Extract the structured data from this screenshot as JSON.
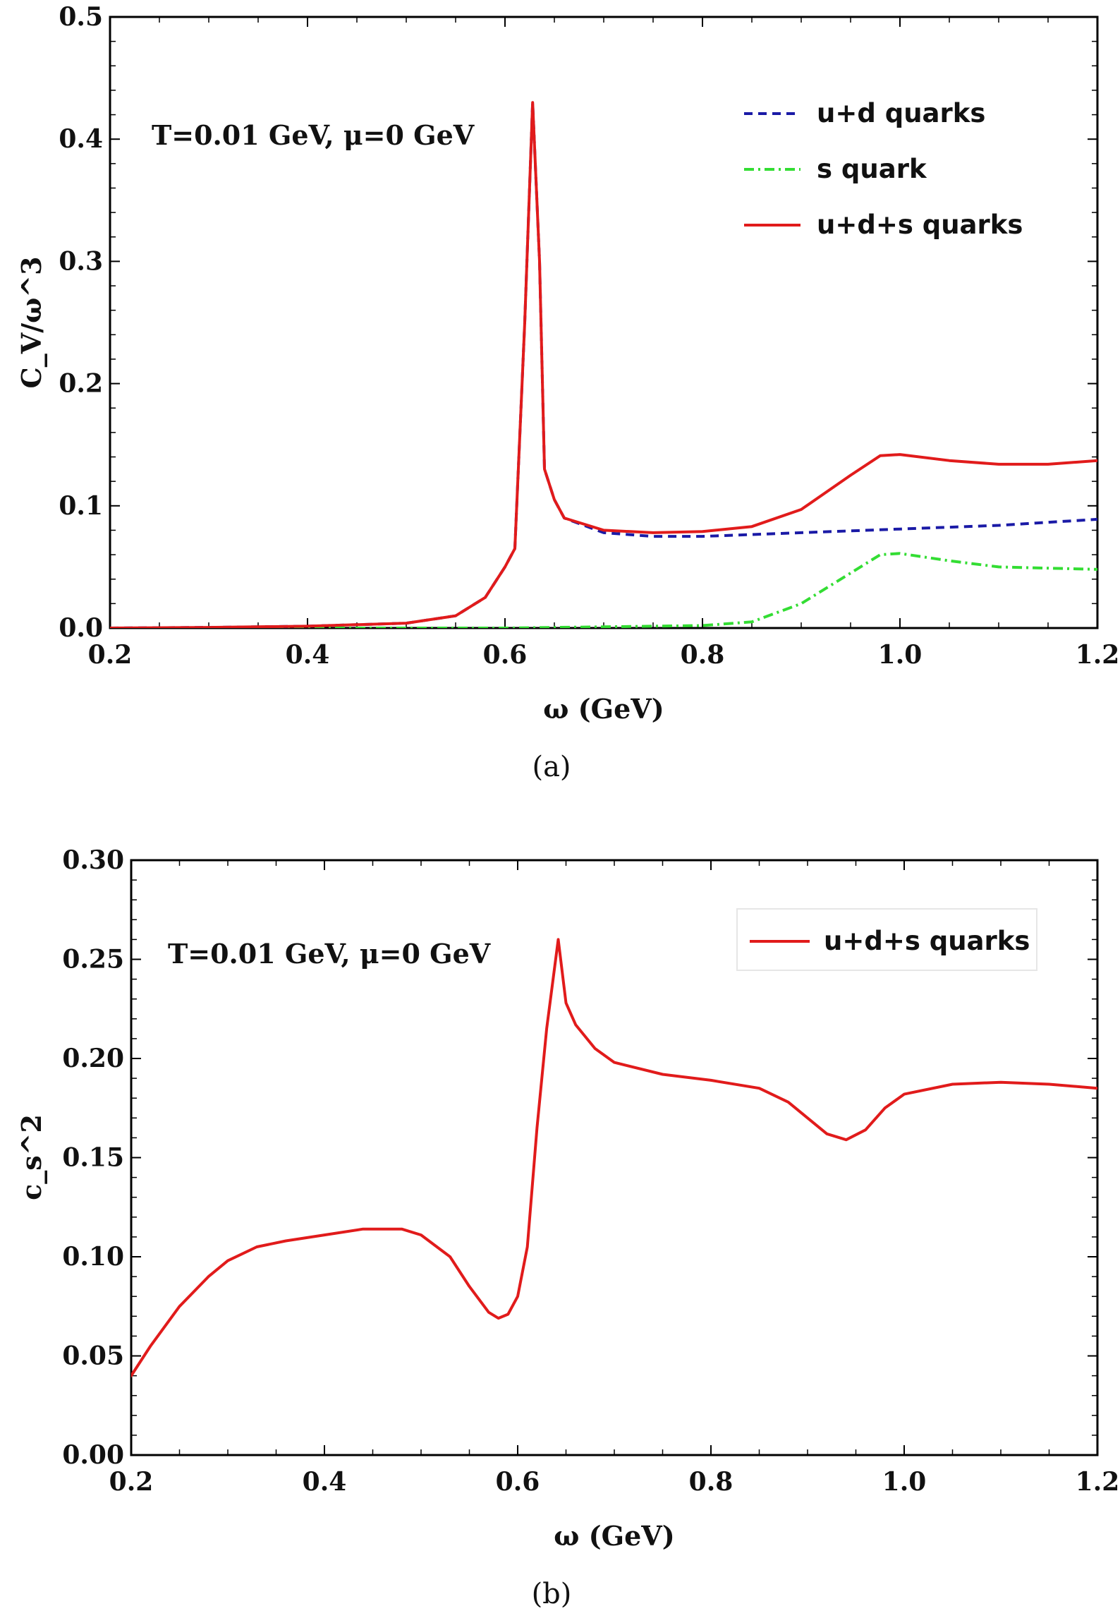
{
  "chart_data": [
    {
      "type": "line",
      "panel_label": "(a)",
      "annotation": "T=0.01 GeV, μ=0 GeV",
      "xlabel": "ω (GeV)",
      "ylabel": "C_V/ω^3",
      "xlim": [
        0.2,
        1.2
      ],
      "ylim": [
        0.0,
        0.5
      ],
      "x_ticks": [
        "0.2",
        "0.4",
        "0.6",
        "0.8",
        "1.0",
        "1.2"
      ],
      "y_ticks": [
        "0.0",
        "0.1",
        "0.2",
        "0.3",
        "0.4",
        "0.5"
      ],
      "legend_position": "top-right",
      "grid": false,
      "series": [
        {
          "name": "u+d quarks",
          "style": "dashed",
          "color": "#1a1aa6",
          "points": [
            [
              0.2,
              0.0
            ],
            [
              0.3,
              0.0005
            ],
            [
              0.4,
              0.0015
            ],
            [
              0.5,
              0.004
            ],
            [
              0.55,
              0.01
            ],
            [
              0.58,
              0.025
            ],
            [
              0.6,
              0.05
            ],
            [
              0.61,
              0.065
            ],
            [
              0.62,
              0.25
            ],
            [
              0.628,
              0.43
            ],
            [
              0.635,
              0.3
            ],
            [
              0.64,
              0.13
            ],
            [
              0.65,
              0.105
            ],
            [
              0.66,
              0.09
            ],
            [
              0.7,
              0.078
            ],
            [
              0.75,
              0.075
            ],
            [
              0.8,
              0.075
            ],
            [
              0.9,
              0.078
            ],
            [
              1.0,
              0.081
            ],
            [
              1.1,
              0.084
            ],
            [
              1.2,
              0.089
            ]
          ]
        },
        {
          "name": "s quark",
          "style": "dash-dot",
          "color": "#33dd33",
          "points": [
            [
              0.2,
              0.0
            ],
            [
              0.6,
              0.0
            ],
            [
              0.7,
              0.001
            ],
            [
              0.8,
              0.002
            ],
            [
              0.85,
              0.005
            ],
            [
              0.9,
              0.02
            ],
            [
              0.95,
              0.045
            ],
            [
              0.98,
              0.06
            ],
            [
              1.0,
              0.061
            ],
            [
              1.05,
              0.055
            ],
            [
              1.1,
              0.05
            ],
            [
              1.2,
              0.048
            ]
          ]
        },
        {
          "name": "u+d+s quarks",
          "style": "solid",
          "color": "#e11b1b",
          "points": [
            [
              0.2,
              0.0
            ],
            [
              0.3,
              0.0005
            ],
            [
              0.4,
              0.0015
            ],
            [
              0.5,
              0.004
            ],
            [
              0.55,
              0.01
            ],
            [
              0.58,
              0.025
            ],
            [
              0.6,
              0.05
            ],
            [
              0.61,
              0.065
            ],
            [
              0.62,
              0.25
            ],
            [
              0.628,
              0.43
            ],
            [
              0.635,
              0.3
            ],
            [
              0.64,
              0.13
            ],
            [
              0.65,
              0.105
            ],
            [
              0.66,
              0.09
            ],
            [
              0.7,
              0.08
            ],
            [
              0.75,
              0.078
            ],
            [
              0.8,
              0.079
            ],
            [
              0.85,
              0.083
            ],
            [
              0.9,
              0.097
            ],
            [
              0.95,
              0.125
            ],
            [
              0.98,
              0.141
            ],
            [
              1.0,
              0.142
            ],
            [
              1.05,
              0.137
            ],
            [
              1.1,
              0.134
            ],
            [
              1.15,
              0.134
            ],
            [
              1.2,
              0.137
            ]
          ]
        }
      ]
    },
    {
      "type": "line",
      "panel_label": "(b)",
      "annotation": "T=0.01 GeV, μ=0 GeV",
      "xlabel": "ω (GeV)",
      "ylabel": "c_s^2",
      "xlim": [
        0.2,
        1.2
      ],
      "ylim": [
        0.0,
        0.3
      ],
      "x_ticks": [
        "0.2",
        "0.4",
        "0.6",
        "0.8",
        "1.0",
        "1.2"
      ],
      "y_ticks": [
        "0.00",
        "0.05",
        "0.10",
        "0.15",
        "0.20",
        "0.25",
        "0.30"
      ],
      "legend_position": "top-right",
      "grid": false,
      "series": [
        {
          "name": "u+d+s quarks",
          "style": "solid",
          "color": "#e11b1b",
          "points": [
            [
              0.2,
              0.04
            ],
            [
              0.22,
              0.055
            ],
            [
              0.25,
              0.075
            ],
            [
              0.28,
              0.09
            ],
            [
              0.3,
              0.098
            ],
            [
              0.33,
              0.105
            ],
            [
              0.36,
              0.108
            ],
            [
              0.4,
              0.111
            ],
            [
              0.44,
              0.114
            ],
            [
              0.48,
              0.114
            ],
            [
              0.5,
              0.111
            ],
            [
              0.53,
              0.1
            ],
            [
              0.55,
              0.085
            ],
            [
              0.57,
              0.072
            ],
            [
              0.58,
              0.069
            ],
            [
              0.59,
              0.071
            ],
            [
              0.6,
              0.08
            ],
            [
              0.61,
              0.105
            ],
            [
              0.62,
              0.165
            ],
            [
              0.63,
              0.215
            ],
            [
              0.642,
              0.26
            ],
            [
              0.65,
              0.228
            ],
            [
              0.66,
              0.217
            ],
            [
              0.68,
              0.205
            ],
            [
              0.7,
              0.198
            ],
            [
              0.75,
              0.192
            ],
            [
              0.8,
              0.189
            ],
            [
              0.85,
              0.185
            ],
            [
              0.88,
              0.178
            ],
            [
              0.9,
              0.17
            ],
            [
              0.92,
              0.162
            ],
            [
              0.94,
              0.159
            ],
            [
              0.96,
              0.164
            ],
            [
              0.98,
              0.175
            ],
            [
              1.0,
              0.182
            ],
            [
              1.05,
              0.187
            ],
            [
              1.1,
              0.188
            ],
            [
              1.15,
              0.187
            ],
            [
              1.2,
              0.185
            ]
          ]
        }
      ]
    }
  ]
}
